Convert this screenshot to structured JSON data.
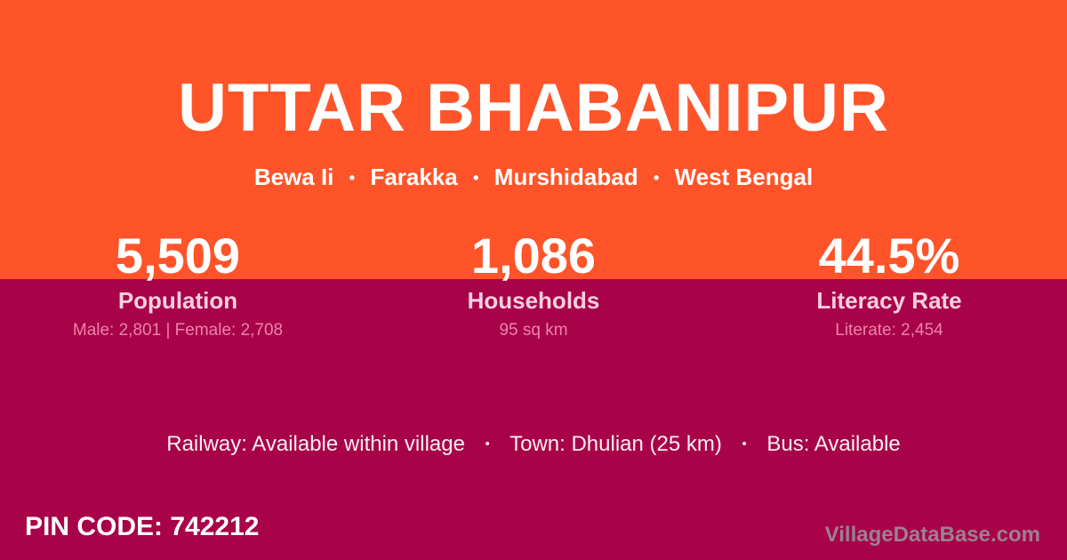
{
  "card": {
    "title": "UTTAR BHABANIPUR",
    "location": {
      "separator": "•",
      "items": [
        "Bewa Ii",
        "Farakka",
        "Murshidabad",
        "West Bengal"
      ]
    },
    "stats": [
      {
        "value": "5,509",
        "label": "Population",
        "detail": "Male: 2,801 | Female: 2,708"
      },
      {
        "value": "1,086",
        "label": "Households",
        "detail": "95 sq km"
      },
      {
        "value": "44.5%",
        "label": "Literacy Rate",
        "detail": "Literate: 2,454"
      }
    ],
    "amenities": {
      "separator": "•",
      "items": [
        "Railway: Available within village",
        "Town: Dhulian (25 km)",
        "Bus: Available"
      ]
    },
    "footer": {
      "pin_code": "PIN CODE: 742212",
      "watermark": "VillageDataBase.com"
    },
    "colors": {
      "top_background": "#FF5429",
      "bottom_background": "#A80348",
      "stat_label": "#F8CFE0",
      "stat_detail": "#ED82AA",
      "text_primary": "#FFFFFF",
      "watermark": "#9C8090"
    }
  }
}
